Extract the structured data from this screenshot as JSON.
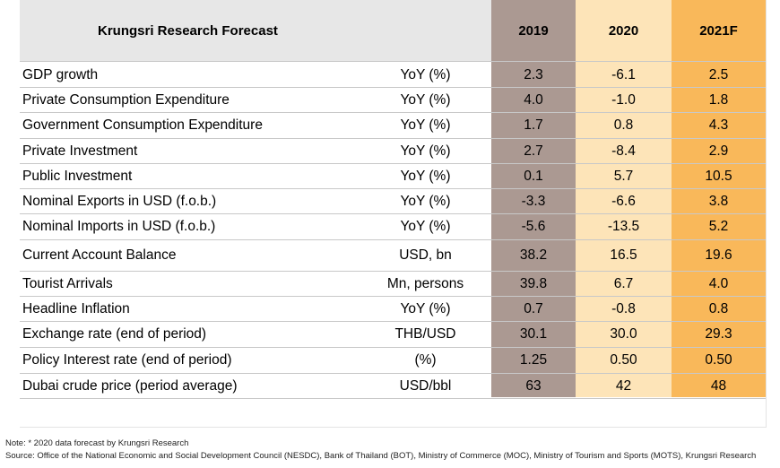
{
  "table": {
    "title": "Krungsri Research Forecast",
    "years": [
      "2019",
      "2020",
      "2021F"
    ],
    "rows": [
      {
        "name": "GDP growth",
        "unit": "YoY (%)",
        "v2019": "2.3",
        "v2020": "-6.1",
        "v2021": "2.5"
      },
      {
        "name": "Private Consumption Expenditure",
        "unit": "YoY (%)",
        "v2019": "4.0",
        "v2020": "-1.0",
        "v2021": "1.8"
      },
      {
        "name": "Government Consumption Expenditure",
        "unit": "YoY (%)",
        "v2019": "1.7",
        "v2020": "0.8",
        "v2021": "4.3"
      },
      {
        "name": "Private Investment",
        "unit": "YoY (%)",
        "v2019": "2.7",
        "v2020": "-8.4",
        "v2021": "2.9"
      },
      {
        "name": "Public Investment",
        "unit": "YoY (%)",
        "v2019": "0.1",
        "v2020": "5.7",
        "v2021": "10.5"
      },
      {
        "name": "Nominal Exports in USD (f.o.b.)",
        "unit": "YoY (%)",
        "v2019": "-3.3",
        "v2020": "-6.6",
        "v2021": "3.8"
      },
      {
        "name": "Nominal Imports in USD (f.o.b.)",
        "unit": "YoY (%)",
        "v2019": "-5.6",
        "v2020": "-13.5",
        "v2021": "5.2"
      },
      {
        "name": "Current Account Balance",
        "unit": "USD, bn",
        "v2019": "38.2",
        "v2020": "16.5",
        "v2021": "19.6"
      },
      {
        "name": "Tourist Arrivals",
        "unit": "Mn, persons",
        "v2019": "39.8",
        "v2020": "6.7",
        "v2021": "4.0"
      },
      {
        "name": "Headline Inflation",
        "unit": "YoY (%)",
        "v2019": "0.7",
        "v2020": "-0.8",
        "v2021": "0.8"
      },
      {
        "name": "Exchange rate (end of period)",
        "unit": "THB/USD",
        "v2019": "30.1",
        "v2020": "30.0",
        "v2021": "29.3"
      },
      {
        "name": "Policy Interest rate (end of period)",
        "unit": "(%)",
        "v2019": "1.25",
        "v2020": "0.50",
        "v2021": "0.50"
      },
      {
        "name": "Dubai crude price (period average)",
        "unit": "USD/bbl",
        "v2019": "63",
        "v2020": "42",
        "v2021": "48"
      }
    ],
    "colors": {
      "col2019": "#ab9992",
      "col2020": "#fde4b8",
      "col2021": "#f9b85a",
      "header": "#e7e7e7"
    }
  },
  "notes": {
    "note": "Note: * 2020 data forecast by Krungsri Research",
    "source": "Source: Office of the National Economic and Social Development Council (NESDC), Bank of Thailand (BOT), Ministry of Commerce (MOC), Ministry of Tourism and Sports (MOTS), Krungsri Research"
  }
}
